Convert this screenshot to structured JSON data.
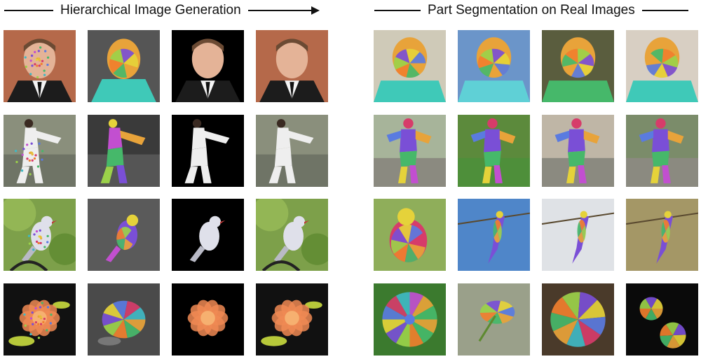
{
  "headers": {
    "left_title": "Hierarchical Image Generation",
    "right_title": "Part Segmentation on Real Images"
  },
  "rows": [
    {
      "subject": "face",
      "left": [
        "face-keypoints",
        "face-segmentation",
        "face-generated-black-bg",
        "face-generated-full"
      ],
      "right": [
        "face-real-segmentation-1",
        "face-real-segmentation-2",
        "face-real-segmentation-3",
        "face-real-segmentation-4"
      ]
    },
    {
      "subject": "person",
      "left": [
        "person-keypoints",
        "person-segmentation",
        "person-generated-black-bg",
        "person-generated-full"
      ],
      "right": [
        "person-real-segmentation-1",
        "person-real-segmentation-2",
        "person-real-segmentation-3",
        "person-real-segmentation-4"
      ]
    },
    {
      "subject": "bird",
      "left": [
        "bird-keypoints",
        "bird-segmentation",
        "bird-generated-black-bg",
        "bird-generated-full"
      ],
      "right": [
        "bird-real-segmentation-1",
        "bird-real-segmentation-2",
        "bird-real-segmentation-3",
        "bird-real-segmentation-4"
      ]
    },
    {
      "subject": "flower",
      "left": [
        "flower-keypoints",
        "flower-segmentation",
        "flower-generated-black-bg",
        "flower-generated-full"
      ],
      "right": [
        "flower-real-segmentation-1",
        "flower-real-segmentation-2",
        "flower-real-segmentation-3",
        "flower-real-segmentation-4"
      ]
    }
  ]
}
